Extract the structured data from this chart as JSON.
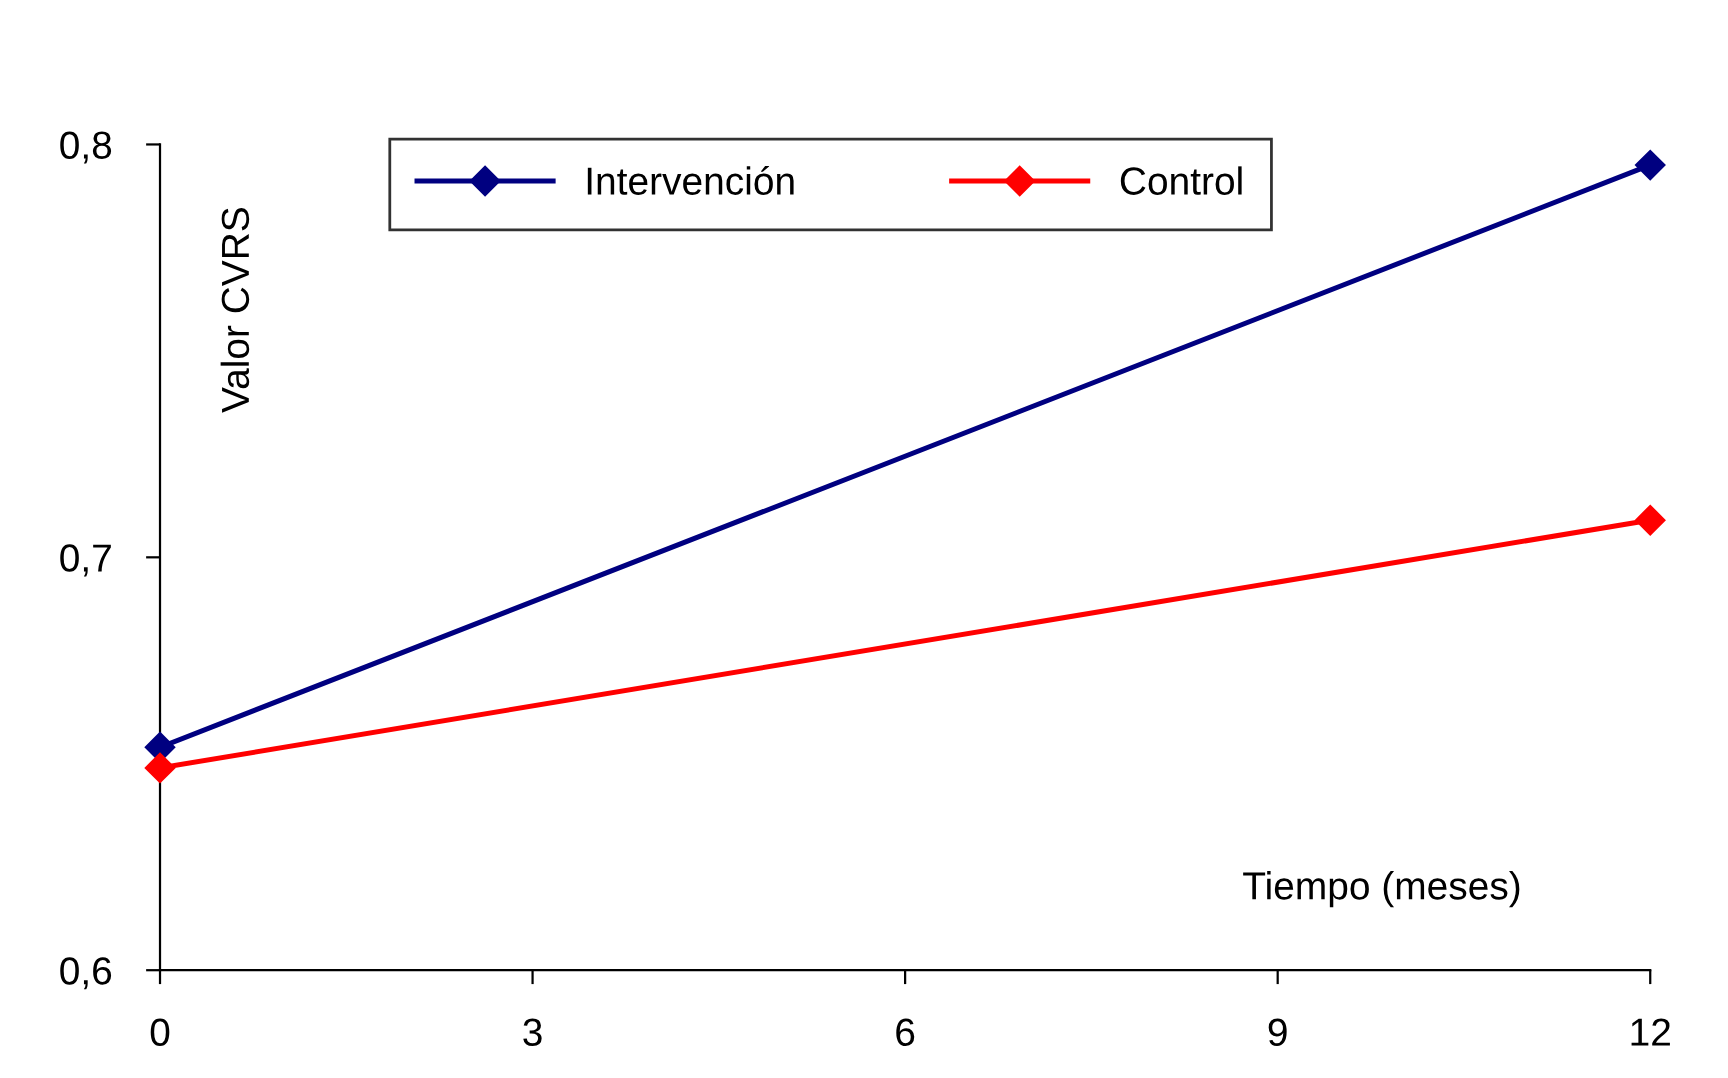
{
  "chart_data": {
    "type": "line",
    "xlabel": "Tiempo (meses)",
    "ylabel": "Valor CVRS",
    "x": [
      0,
      12
    ],
    "series": [
      {
        "name": "Intervención",
        "color": "#000080",
        "values": [
          0.654,
          0.795
        ]
      },
      {
        "name": "Control",
        "color": "#ff0000",
        "values": [
          0.649,
          0.709
        ]
      }
    ],
    "xlim": [
      0,
      12
    ],
    "xticks": [
      0,
      3,
      6,
      9,
      12
    ],
    "ylim": [
      0.6,
      0.8
    ],
    "yticks": [
      {
        "value": 0.6,
        "label": "0,6"
      },
      {
        "value": 0.7,
        "label": "0,7"
      },
      {
        "value": 0.8,
        "label": "0,8"
      }
    ],
    "marker": "diamond",
    "line_style": "solid",
    "grid": false,
    "legend": "top"
  }
}
